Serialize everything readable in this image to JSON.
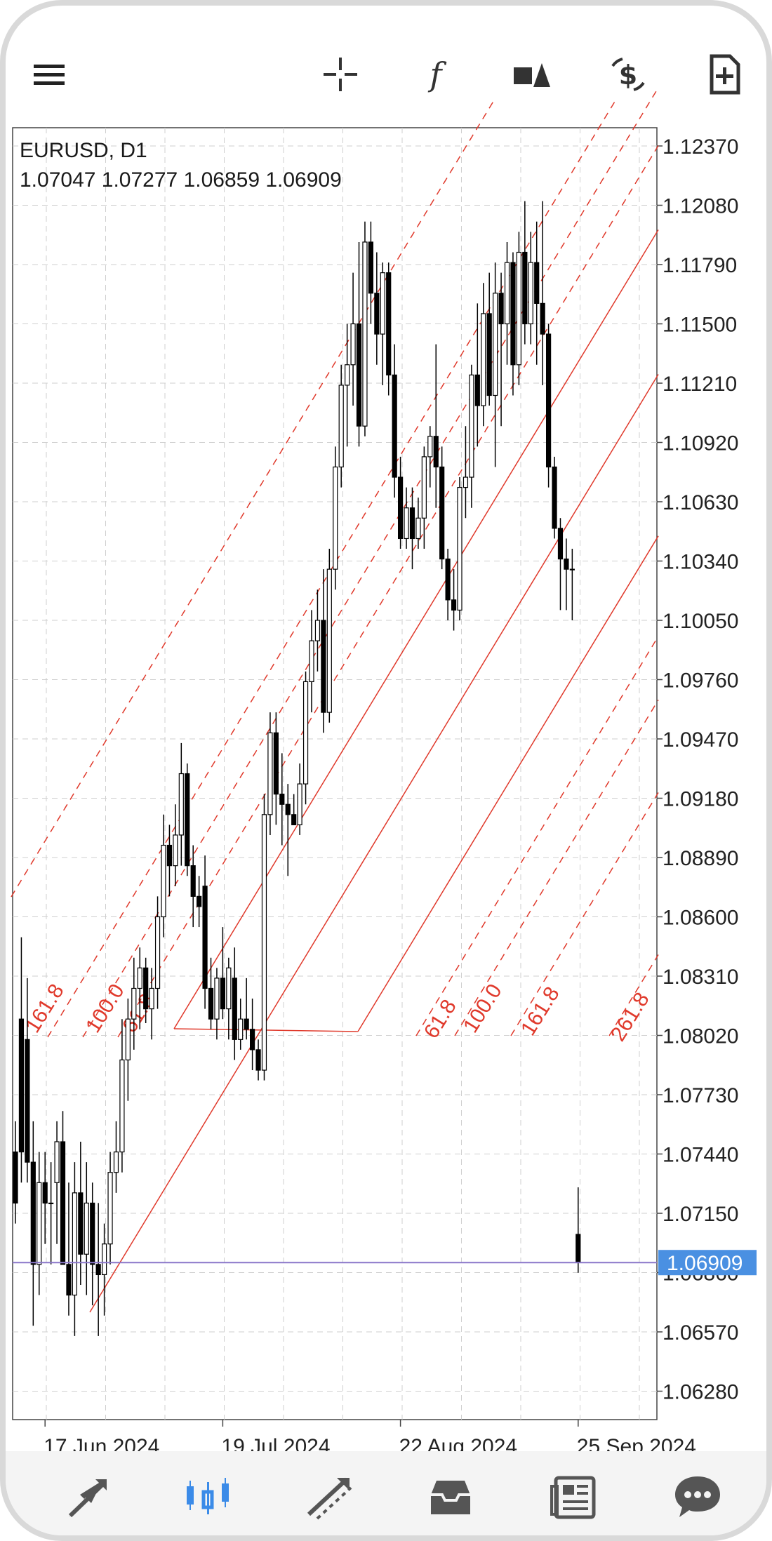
{
  "symbol": {
    "name": "EURUSD, D1",
    "ohlc": "1.07047 1.07277 1.06859 1.06909"
  },
  "current_price": {
    "label": "1.06909",
    "value": 1.06909,
    "color": "#8a77c9",
    "badge_color": "#4a90e2"
  },
  "toolbar": {
    "icons": [
      "menu-icon",
      "crosshair-icon",
      "indicators-icon",
      "objects-icon",
      "trade-icon",
      "new-order-icon"
    ]
  },
  "bottom_nav": {
    "items": [
      "quotes-icon",
      "chart-icon",
      "trade-icon",
      "history-icon",
      "news-icon",
      "chat-icon"
    ],
    "active": "chart-icon",
    "active_color": "#3b8be8"
  },
  "colors": {
    "bull": "#ffffff",
    "bear": "#000000",
    "fib": "#e0392b",
    "grid": "#cfcfcf"
  },
  "chart_data": {
    "type": "candlestick",
    "symbol": "EURUSD",
    "timeframe": "D1",
    "ylim": [
      1.0615,
      1.125
    ],
    "y_ticks": [
      "1.12370",
      "1.12080",
      "1.11790",
      "1.11500",
      "1.11210",
      "1.10920",
      "1.10630",
      "1.10340",
      "1.10050",
      "1.09760",
      "1.09470",
      "1.09180",
      "1.08890",
      "1.08600",
      "1.08310",
      "1.08020",
      "1.07730",
      "1.07440",
      "1.07150",
      "1.06860",
      "1.06570",
      "1.06280"
    ],
    "x_labels": [
      {
        "text": "17 Jun 2024",
        "bar": 5
      },
      {
        "text": "19 Jul 2024",
        "bar": 35
      },
      {
        "text": "22 Aug 2024",
        "bar": 65
      },
      {
        "text": "25 Sep 2024",
        "bar": 95
      }
    ],
    "candles": [
      {
        "o": 1.0745,
        "h": 1.076,
        "l": 1.071,
        "c": 1.072
      },
      {
        "o": 1.081,
        "h": 1.085,
        "l": 1.073,
        "c": 1.0745
      },
      {
        "o": 1.08,
        "h": 1.083,
        "l": 1.073,
        "c": 1.074
      },
      {
        "o": 1.074,
        "h": 1.076,
        "l": 1.066,
        "c": 1.069
      },
      {
        "o": 1.069,
        "h": 1.0745,
        "l": 1.0675,
        "c": 1.073
      },
      {
        "o": 1.073,
        "h": 1.0745,
        "l": 1.07,
        "c": 1.072
      },
      {
        "o": 1.072,
        "h": 1.074,
        "l": 1.069,
        "c": 1.072
      },
      {
        "o": 1.073,
        "h": 1.076,
        "l": 1.07,
        "c": 1.075
      },
      {
        "o": 1.075,
        "h": 1.0765,
        "l": 1.069,
        "c": 1.069
      },
      {
        "o": 1.069,
        "h": 1.073,
        "l": 1.0665,
        "c": 1.0675
      },
      {
        "o": 1.0675,
        "h": 1.074,
        "l": 1.0655,
        "c": 1.0725
      },
      {
        "o": 1.0725,
        "h": 1.075,
        "l": 1.068,
        "c": 1.0695
      },
      {
        "o": 1.0695,
        "h": 1.074,
        "l": 1.0675,
        "c": 1.072
      },
      {
        "o": 1.072,
        "h": 1.073,
        "l": 1.067,
        "c": 1.069
      },
      {
        "o": 1.069,
        "h": 1.072,
        "l": 1.0655,
        "c": 1.0685
      },
      {
        "o": 1.0685,
        "h": 1.071,
        "l": 1.0665,
        "c": 1.07
      },
      {
        "o": 1.07,
        "h": 1.0745,
        "l": 1.069,
        "c": 1.0735
      },
      {
        "o": 1.0735,
        "h": 1.076,
        "l": 1.0725,
        "c": 1.0745
      },
      {
        "o": 1.0745,
        "h": 1.081,
        "l": 1.0735,
        "c": 1.079
      },
      {
        "o": 1.079,
        "h": 1.082,
        "l": 1.077,
        "c": 1.081
      },
      {
        "o": 1.081,
        "h": 1.084,
        "l": 1.0795,
        "c": 1.0825
      },
      {
        "o": 1.0825,
        "h": 1.0845,
        "l": 1.0805,
        "c": 1.0835
      },
      {
        "o": 1.0835,
        "h": 1.084,
        "l": 1.0808,
        "c": 1.0815
      },
      {
        "o": 1.0815,
        "h": 1.0835,
        "l": 1.08,
        "c": 1.0825
      },
      {
        "o": 1.0825,
        "h": 1.087,
        "l": 1.0815,
        "c": 1.086
      },
      {
        "o": 1.086,
        "h": 1.091,
        "l": 1.085,
        "c": 1.0895
      },
      {
        "o": 1.0895,
        "h": 1.0905,
        "l": 1.087,
        "c": 1.0885
      },
      {
        "o": 1.0885,
        "h": 1.0915,
        "l": 1.0875,
        "c": 1.09
      },
      {
        "o": 1.09,
        "h": 1.0945,
        "l": 1.0885,
        "c": 1.093
      },
      {
        "o": 1.093,
        "h": 1.0935,
        "l": 1.088,
        "c": 1.0885
      },
      {
        "o": 1.0885,
        "h": 1.0895,
        "l": 1.0855,
        "c": 1.087
      },
      {
        "o": 1.087,
        "h": 1.088,
        "l": 1.0855,
        "c": 1.0865
      },
      {
        "o": 1.0875,
        "h": 1.089,
        "l": 1.0815,
        "c": 1.0825
      },
      {
        "o": 1.0825,
        "h": 1.084,
        "l": 1.0805,
        "c": 1.081
      },
      {
        "o": 1.081,
        "h": 1.0835,
        "l": 1.08,
        "c": 1.083
      },
      {
        "o": 1.083,
        "h": 1.0855,
        "l": 1.081,
        "c": 1.0815
      },
      {
        "o": 1.0815,
        "h": 1.084,
        "l": 1.08,
        "c": 1.0835
      },
      {
        "o": 1.083,
        "h": 1.0845,
        "l": 1.079,
        "c": 1.08
      },
      {
        "o": 1.08,
        "h": 1.082,
        "l": 1.0795,
        "c": 1.081
      },
      {
        "o": 1.081,
        "h": 1.083,
        "l": 1.08,
        "c": 1.0805
      },
      {
        "o": 1.0805,
        "h": 1.082,
        "l": 1.0785,
        "c": 1.0795
      },
      {
        "o": 1.0795,
        "h": 1.08,
        "l": 1.078,
        "c": 1.0785
      },
      {
        "o": 1.0785,
        "h": 1.092,
        "l": 1.078,
        "c": 1.091
      },
      {
        "o": 1.091,
        "h": 1.096,
        "l": 1.09,
        "c": 1.095
      },
      {
        "o": 1.095,
        "h": 1.096,
        "l": 1.0905,
        "c": 1.092
      },
      {
        "o": 1.092,
        "h": 1.094,
        "l": 1.0895,
        "c": 1.0915
      },
      {
        "o": 1.0915,
        "h": 1.0925,
        "l": 1.088,
        "c": 1.091
      },
      {
        "o": 1.091,
        "h": 1.092,
        "l": 1.0905,
        "c": 1.0905
      },
      {
        "o": 1.0905,
        "h": 1.0935,
        "l": 1.09,
        "c": 1.0925
      },
      {
        "o": 1.0925,
        "h": 1.098,
        "l": 1.0915,
        "c": 1.0975
      },
      {
        "o": 1.0975,
        "h": 1.101,
        "l": 1.096,
        "c": 1.0995
      },
      {
        "o": 1.0995,
        "h": 1.102,
        "l": 1.098,
        "c": 1.1005
      },
      {
        "o": 1.1005,
        "h": 1.103,
        "l": 1.095,
        "c": 1.096
      },
      {
        "o": 1.096,
        "h": 1.104,
        "l": 1.0955,
        "c": 1.103
      },
      {
        "o": 1.103,
        "h": 1.109,
        "l": 1.102,
        "c": 1.108
      },
      {
        "o": 1.108,
        "h": 1.113,
        "l": 1.107,
        "c": 1.112
      },
      {
        "o": 1.112,
        "h": 1.115,
        "l": 1.109,
        "c": 1.113
      },
      {
        "o": 1.113,
        "h": 1.1175,
        "l": 1.111,
        "c": 1.115
      },
      {
        "o": 1.115,
        "h": 1.119,
        "l": 1.109,
        "c": 1.11
      },
      {
        "o": 1.11,
        "h": 1.12,
        "l": 1.1095,
        "c": 1.119
      },
      {
        "o": 1.119,
        "h": 1.12,
        "l": 1.115,
        "c": 1.1165
      },
      {
        "o": 1.1165,
        "h": 1.1185,
        "l": 1.113,
        "c": 1.1145
      },
      {
        "o": 1.1145,
        "h": 1.118,
        "l": 1.112,
        "c": 1.1175
      },
      {
        "o": 1.1175,
        "h": 1.118,
        "l": 1.1115,
        "c": 1.1125
      },
      {
        "o": 1.1125,
        "h": 1.114,
        "l": 1.1065,
        "c": 1.1075
      },
      {
        "o": 1.1075,
        "h": 1.1085,
        "l": 1.104,
        "c": 1.1045
      },
      {
        "o": 1.1045,
        "h": 1.107,
        "l": 1.104,
        "c": 1.106
      },
      {
        "o": 1.106,
        "h": 1.107,
        "l": 1.103,
        "c": 1.1045
      },
      {
        "o": 1.1045,
        "h": 1.1065,
        "l": 1.104,
        "c": 1.1055
      },
      {
        "o": 1.1055,
        "h": 1.109,
        "l": 1.104,
        "c": 1.1085
      },
      {
        "o": 1.1085,
        "h": 1.11,
        "l": 1.107,
        "c": 1.1095
      },
      {
        "o": 1.1095,
        "h": 1.114,
        "l": 1.106,
        "c": 1.108
      },
      {
        "o": 1.108,
        "h": 1.109,
        "l": 1.103,
        "c": 1.1035
      },
      {
        "o": 1.1035,
        "h": 1.104,
        "l": 1.1005,
        "c": 1.1015
      },
      {
        "o": 1.1015,
        "h": 1.103,
        "l": 1.1,
        "c": 1.101
      },
      {
        "o": 1.101,
        "h": 1.1075,
        "l": 1.1005,
        "c": 1.107
      },
      {
        "o": 1.107,
        "h": 1.11,
        "l": 1.1055,
        "c": 1.1075
      },
      {
        "o": 1.1075,
        "h": 1.113,
        "l": 1.106,
        "c": 1.1125
      },
      {
        "o": 1.1125,
        "h": 1.116,
        "l": 1.109,
        "c": 1.111
      },
      {
        "o": 1.111,
        "h": 1.117,
        "l": 1.11,
        "c": 1.1155
      },
      {
        "o": 1.1155,
        "h": 1.1175,
        "l": 1.111,
        "c": 1.1115
      },
      {
        "o": 1.1115,
        "h": 1.118,
        "l": 1.108,
        "c": 1.1165
      },
      {
        "o": 1.1165,
        "h": 1.1175,
        "l": 1.11,
        "c": 1.115
      },
      {
        "o": 1.115,
        "h": 1.119,
        "l": 1.113,
        "c": 1.118
      },
      {
        "o": 1.118,
        "h": 1.1185,
        "l": 1.1115,
        "c": 1.113
      },
      {
        "o": 1.113,
        "h": 1.1195,
        "l": 1.112,
        "c": 1.1185
      },
      {
        "o": 1.1185,
        "h": 1.121,
        "l": 1.114,
        "c": 1.115
      },
      {
        "o": 1.115,
        "h": 1.1195,
        "l": 1.114,
        "c": 1.118
      },
      {
        "o": 1.118,
        "h": 1.12,
        "l": 1.113,
        "c": 1.116
      },
      {
        "o": 1.116,
        "h": 1.121,
        "l": 1.112,
        "c": 1.1145
      },
      {
        "o": 1.1145,
        "h": 1.115,
        "l": 1.107,
        "c": 1.108
      },
      {
        "o": 1.108,
        "h": 1.1085,
        "l": 1.1045,
        "c": 1.105
      },
      {
        "o": 1.105,
        "h": 1.1055,
        "l": 1.101,
        "c": 1.1035
      },
      {
        "o": 1.1035,
        "h": 1.1045,
        "l": 1.101,
        "c": 1.103
      },
      {
        "o": 1.103,
        "h": 1.104,
        "l": 1.1005,
        "c": 1.103
      }
    ],
    "last_candle": {
      "o": 1.07047,
      "h": 1.07277,
      "l": 1.06859,
      "c": 1.06909
    },
    "fibonacci_channel": {
      "levels_left": [
        "161.8",
        "100.0",
        "61.8"
      ],
      "levels_right": [
        "61.8",
        "100.0",
        "161.8",
        "261.8"
      ]
    }
  }
}
